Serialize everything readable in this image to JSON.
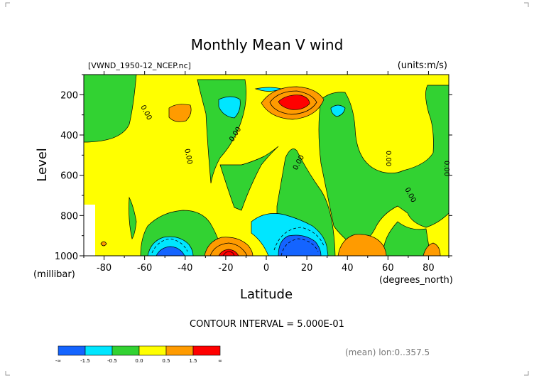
{
  "chart_data": {
    "type": "heatmap",
    "title": "Monthly Mean V wind",
    "file_label": "[VWND_1950-12_NCEP.nc]",
    "units_label": "(units:m/s)",
    "xlabel": "Latitude",
    "x_units": "(degrees_north)",
    "ylabel": "Level",
    "y_units": "(millibar)",
    "xlim": [
      -90,
      90
    ],
    "ylim": [
      1000,
      100
    ],
    "x_ticks": [
      "-80",
      "-60",
      "-40",
      "-20",
      "0",
      "20",
      "40",
      "60",
      "80"
    ],
    "x_tick_values": [
      -80,
      -60,
      -40,
      -20,
      0,
      20,
      40,
      60,
      80
    ],
    "y_ticks": [
      "200",
      "400",
      "600",
      "800",
      "1000"
    ],
    "y_tick_values": [
      200,
      400,
      600,
      800,
      1000
    ],
    "contour_interval_text": "CONTOUR INTERVAL = 5.000E-01",
    "contour_labels": [
      "0.00",
      "0.00",
      "0.00",
      "0.00",
      "0.00",
      "0.00",
      "0.00"
    ],
    "mean_info": "(mean) lon:0..357.5",
    "colorbar": {
      "colors": [
        "#1464ff",
        "#00e6ff",
        "#32d232",
        "#ffff00",
        "#ff9b00",
        "#ff0000"
      ],
      "labels": [
        "-∞",
        "-1.5",
        "-0.5",
        "0.0",
        "0.5",
        "1.5",
        "∞"
      ]
    }
  }
}
